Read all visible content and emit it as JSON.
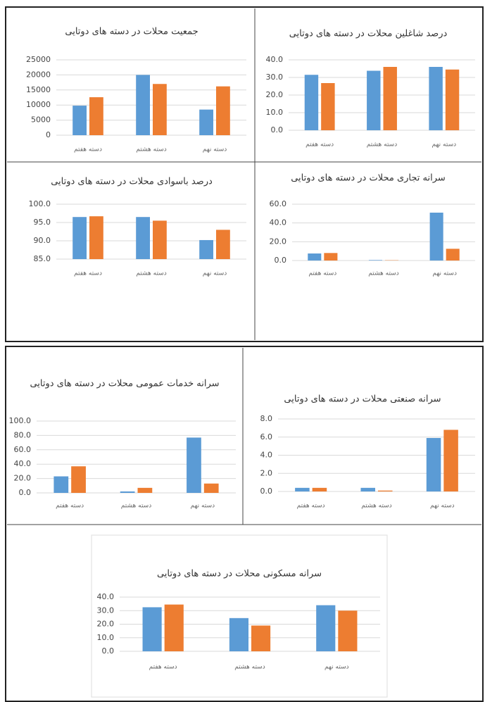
{
  "chart_data": [
    {
      "type": "bar",
      "title": "جمعیت محلات در دسته های دوتایی",
      "categories": [
        "دسته هفتم",
        "دسته هشتم",
        "دسته نهم"
      ],
      "series": [
        {
          "color": "#5b9bd5",
          "values": [
            9800,
            20000,
            8500
          ]
        },
        {
          "color": "#ed7d31",
          "values": [
            12600,
            17000,
            16200
          ]
        }
      ],
      "ylim": [
        0,
        25000
      ],
      "yticks": [
        0,
        5000,
        10000,
        15000,
        20000,
        25000
      ],
      "grid": true
    },
    {
      "type": "bar",
      "title": "درصد شاغلین محلات در دسته های دوتایی",
      "categories": [
        "دسته هفتم",
        "دسته هشتم",
        "دسته نهم"
      ],
      "series": [
        {
          "color": "#5b9bd5",
          "values": [
            31.5,
            33.8,
            36
          ]
        },
        {
          "color": "#ed7d31",
          "values": [
            26.8,
            36,
            34.5
          ]
        }
      ],
      "ylim": [
        0,
        40
      ],
      "yticks": [
        {
          "value": 0,
          "label": "0.0"
        },
        {
          "value": 10,
          "label": "10.0"
        },
        {
          "value": 20,
          "label": "20.0"
        },
        {
          "value": 30,
          "label": "30.0"
        },
        {
          "value": 40,
          "label": "40.0"
        }
      ],
      "grid": true
    },
    {
      "type": "bar",
      "title": "درصد باسوادی محلات در دسته های دوتایی",
      "categories": [
        "دسته هفتم",
        "دسته هشتم",
        "دسته نهم"
      ],
      "series": [
        {
          "color": "#5b9bd5",
          "values": [
            96.5,
            96.5,
            90.2
          ]
        },
        {
          "color": "#ed7d31",
          "values": [
            96.7,
            95.5,
            93
          ]
        }
      ],
      "ylim": [
        85,
        100
      ],
      "yticks": [
        {
          "value": 85,
          "label": "85.0"
        },
        {
          "value": 90,
          "label": "90.0"
        },
        {
          "value": 95,
          "label": "95.0"
        },
        {
          "value": 100,
          "label": "100.0"
        }
      ],
      "grid": true
    },
    {
      "type": "bar",
      "title": "سرانه تجاری محلات در دسته های دوتایی",
      "categories": [
        "دسته هفتم",
        "دسته هشتم",
        "دسته نهم"
      ],
      "series": [
        {
          "color": "#5b9bd5",
          "values": [
            7.5,
            0.5,
            51
          ]
        },
        {
          "color": "#ed7d31",
          "values": [
            8,
            0.3,
            12.5
          ]
        }
      ],
      "ylim": [
        0,
        60
      ],
      "yticks": [
        {
          "value": 0,
          "label": "0.0"
        },
        {
          "value": 20,
          "label": "20.0"
        },
        {
          "value": 40,
          "label": "40.0"
        },
        {
          "value": 60,
          "label": "60.0"
        }
      ],
      "grid": true
    },
    {
      "type": "bar",
      "title": "سرانه خدمات عمومی محلات در دسته های دوتایی",
      "categories": [
        "دسته هفتم",
        "دسته هشتم",
        "دسته نهم"
      ],
      "series": [
        {
          "color": "#5b9bd5",
          "values": [
            23,
            2,
            77
          ]
        },
        {
          "color": "#ed7d31",
          "values": [
            37,
            7,
            13
          ]
        }
      ],
      "ylim": [
        0,
        100
      ],
      "yticks": [
        {
          "value": 0,
          "label": "0.0"
        },
        {
          "value": 20,
          "label": "20.0"
        },
        {
          "value": 40,
          "label": "40.0"
        },
        {
          "value": 60,
          "label": "60.0"
        },
        {
          "value": 80,
          "label": "80.0"
        },
        {
          "value": 100,
          "label": "100.0"
        }
      ],
      "grid": true
    },
    {
      "type": "bar",
      "title": "سرانه صنعتی محلات در دسته های دوتایی",
      "categories": [
        "دسته هفتم",
        "دسته هشتم",
        "دسته نهم"
      ],
      "series": [
        {
          "color": "#5b9bd5",
          "values": [
            0.4,
            0.4,
            5.9
          ]
        },
        {
          "color": "#ed7d31",
          "values": [
            0.4,
            0.1,
            6.8
          ]
        }
      ],
      "ylim": [
        0,
        8
      ],
      "yticks": [
        {
          "value": 0,
          "label": "0.0"
        },
        {
          "value": 2,
          "label": "2.0"
        },
        {
          "value": 4,
          "label": "4.0"
        },
        {
          "value": 6,
          "label": "6.0"
        },
        {
          "value": 8,
          "label": "8.0"
        }
      ],
      "grid": true
    },
    {
      "type": "bar",
      "title": "سرانه مسکونی محلات در دسته های دوتایی",
      "categories": [
        "دسته هفتم",
        "دسته هشتم",
        "دسته نهم"
      ],
      "series": [
        {
          "color": "#5b9bd5",
          "values": [
            32.5,
            24.5,
            34
          ]
        },
        {
          "color": "#ed7d31",
          "values": [
            34.5,
            19,
            30
          ]
        }
      ],
      "ylim": [
        0,
        40
      ],
      "yticks": [
        {
          "value": 0,
          "label": "0.0"
        },
        {
          "value": 10,
          "label": "10.0"
        },
        {
          "value": 20,
          "label": "20.0"
        },
        {
          "value": 30,
          "label": "30.0"
        },
        {
          "value": 40,
          "label": "40.0"
        }
      ],
      "grid": true
    }
  ]
}
